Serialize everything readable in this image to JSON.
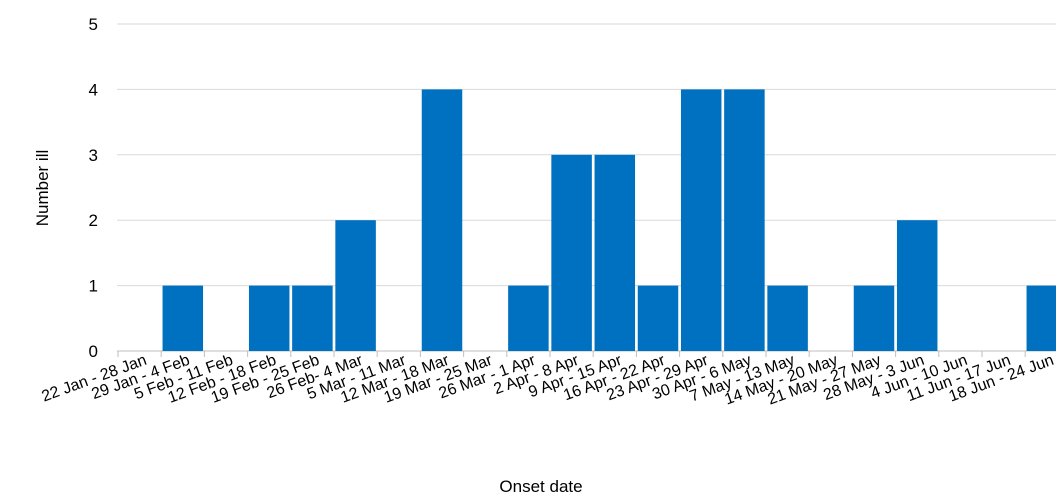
{
  "chart_data": {
    "type": "bar",
    "xlabel": "Onset date",
    "ylabel": "Number ill",
    "ylim": [
      0,
      5
    ],
    "yticks": [
      0,
      1,
      2,
      3,
      4,
      5
    ],
    "grid": true,
    "bar_color": "#0070c0",
    "grid_color": "#d9d9d9",
    "categories": [
      "22 Jan - 28 Jan",
      "29 Jan - 4 Feb",
      "5 Feb - 11 Feb",
      "12 Feb - 18 Feb",
      "19 Feb - 25 Feb",
      "26 Feb- 4 Mar",
      "5 Mar - 11 Mar",
      "12 Mar - 18 Mar",
      "19 Mar - 25 Mar",
      "26 Mar - 1 Apr",
      "2 Apr - 8 Apr",
      "9 Apr - 15 Apr",
      "16 Apr - 22 Apr",
      "23 Apr - 29 Apr",
      "30 Apr - 6 May",
      "7 May - 13 May",
      "14 May - 20 May",
      "21 May - 27 May",
      "28 May - 3 Jun",
      "4 Jun - 10 Jun",
      "11 Jun - 17 Jun",
      "18 Jun - 24 Jun"
    ],
    "values": [
      0,
      1,
      0,
      1,
      1,
      2,
      0,
      4,
      0,
      1,
      3,
      3,
      1,
      4,
      4,
      1,
      0,
      1,
      2,
      0,
      0,
      1
    ]
  }
}
